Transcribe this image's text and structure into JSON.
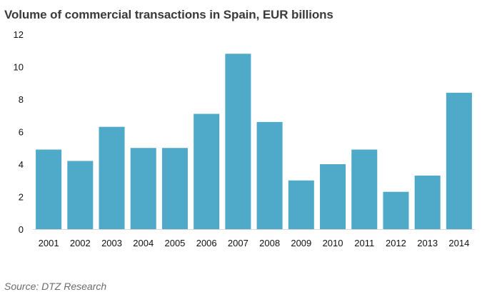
{
  "chart_data": {
    "type": "bar",
    "title": "Volume of commercial transactions in Spain, EUR billions",
    "categories": [
      "2001",
      "2002",
      "2003",
      "2004",
      "2005",
      "2006",
      "2007",
      "2008",
      "2009",
      "2010",
      "2011",
      "2012",
      "2013",
      "2014"
    ],
    "values": [
      4.9,
      4.2,
      6.3,
      5.0,
      5.0,
      7.1,
      10.8,
      6.6,
      3.0,
      4.0,
      4.9,
      2.3,
      3.3,
      8.4
    ],
    "xlabel": "",
    "ylabel": "",
    "ylim": [
      0,
      12
    ],
    "yticks": [
      "0",
      "2",
      "4",
      "6",
      "8",
      "10",
      "12"
    ],
    "grid": false,
    "bar_color": "#4eaac8",
    "source": "Source:  DTZ Research"
  }
}
